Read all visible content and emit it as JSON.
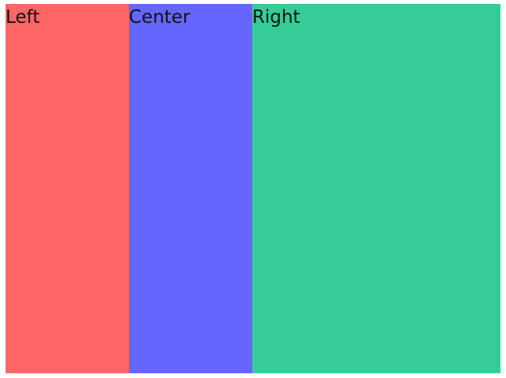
{
  "panels": [
    {
      "label": "Left",
      "color": "#ff6666"
    },
    {
      "label": "Center",
      "color": "#6666ff"
    },
    {
      "label": "Right",
      "color": "#36cc98"
    }
  ]
}
